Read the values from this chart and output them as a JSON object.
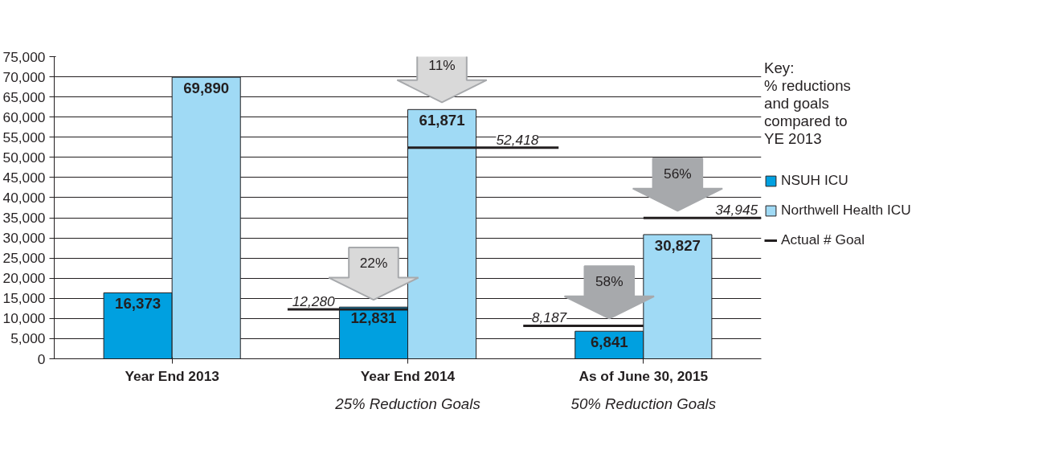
{
  "chart_data": {
    "type": "bar",
    "categories": [
      "Year End 2013",
      "Year End 2014",
      "As of June 30, 2015"
    ],
    "series": [
      {
        "name": "NSUH ICU",
        "color": "#00a0e0",
        "values": [
          16373,
          12831,
          6841
        ],
        "value_labels": [
          "16,373",
          "12,831",
          "6,841"
        ]
      },
      {
        "name": "Northwell Health ICU",
        "color": "#a0daf5",
        "values": [
          69890,
          61871,
          30827
        ],
        "value_labels": [
          "69,890",
          "61,871",
          "30,827"
        ]
      }
    ],
    "ref_lines": [
      {
        "axis": "y",
        "value": 12280,
        "label": "12,280",
        "color": "#231f20"
      },
      {
        "axis": "y",
        "value": 52418,
        "label": "52,418",
        "color": "#231f20"
      },
      {
        "axis": "y",
        "value": 8187,
        "label": "8,187",
        "color": "#231f20"
      },
      {
        "axis": "y",
        "value": 34945,
        "label": "34,945",
        "color": "#231f20"
      }
    ],
    "legend": "right",
    "legend_title": "Key:\n% reductions\nand goals\ncompared to\nYE 2013",
    "ylim": [
      0,
      75000
    ],
    "yticks": [
      0,
      {
        "value": 5000,
        "label": "5,000"
      },
      {
        "value": 10000,
        "label": "10,000"
      },
      {
        "value": 15000,
        "label": "15,000"
      },
      {
        "value": 20000,
        "label": "20,000"
      },
      {
        "value": 25000,
        "label": "25,000"
      },
      {
        "value": 30000,
        "label": "30,000"
      },
      {
        "value": 35000,
        "label": "35,000"
      },
      {
        "value": 40000,
        "label": "40,000"
      },
      {
        "value": 45000,
        "label": "45,000"
      },
      {
        "value": 50000,
        "label": "50,000"
      },
      {
        "value": 55000,
        "label": "55,000"
      },
      {
        "value": 60000,
        "label": "60,000"
      },
      {
        "value": 65000,
        "label": "65,000"
      },
      {
        "value": 70000,
        "label": "70,000"
      },
      {
        "value": 75000,
        "label": "75,000"
      }
    ],
    "grid": "y",
    "annotations": [
      "22%",
      "11%",
      "58%",
      "56%",
      "25% Reduction Goals",
      "50% Reduction Goals",
      "Actual # Goal"
    ]
  }
}
